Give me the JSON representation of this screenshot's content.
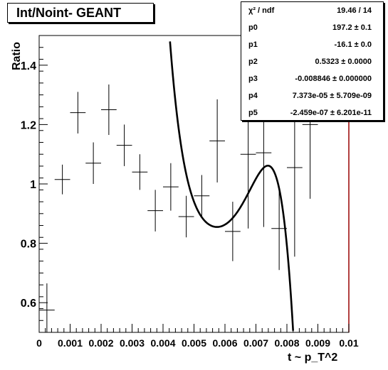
{
  "title": "Int/Noint- GEANT",
  "stats": [
    {
      "name": "χ² / ndf",
      "value": "19.46 / 14"
    },
    {
      "name": "p0",
      "value": "197.2 ± 0.1"
    },
    {
      "name": "p1",
      "value": "-16.1 ± 0.0"
    },
    {
      "name": "p2",
      "value": "0.5323 ± 0.0000"
    },
    {
      "name": "p3",
      "value": "-0.008846 ± 0.000000"
    },
    {
      "name": "p4",
      "value": "7.373e-05 ± 5.709e-09"
    },
    {
      "name": "p5",
      "value": "-2.459e-07 ± 6.201e-11"
    }
  ],
  "chart_data": {
    "type": "scatter",
    "title": "Int/Noint- GEANT",
    "xlabel": "t ~ p_T^2",
    "ylabel": "Ratio",
    "xlim": [
      0,
      0.01
    ],
    "ylim": [
      0.5,
      1.5
    ],
    "x_ticks": [
      "0",
      "0.001",
      "0.002",
      "0.003",
      "0.004",
      "0.005",
      "0.006",
      "0.007",
      "0.008",
      "0.009",
      "0.01"
    ],
    "y_ticks": [
      0.6,
      0.8,
      1,
      1.2,
      1.4
    ],
    "points": [
      {
        "x": 0.00025,
        "y": 0.575,
        "ex": 0.00025,
        "ey": 0.09
      },
      {
        "x": 0.00075,
        "y": 1.015,
        "ex": 0.00025,
        "ey": 0.05
      },
      {
        "x": 0.00125,
        "y": 1.24,
        "ex": 0.00025,
        "ey": 0.07
      },
      {
        "x": 0.00175,
        "y": 1.07,
        "ex": 0.00025,
        "ey": 0.07
      },
      {
        "x": 0.00225,
        "y": 1.25,
        "ex": 0.00025,
        "ey": 0.085
      },
      {
        "x": 0.00275,
        "y": 1.13,
        "ex": 0.00025,
        "ey": 0.07
      },
      {
        "x": 0.00325,
        "y": 1.04,
        "ex": 0.00025,
        "ey": 0.06
      },
      {
        "x": 0.00375,
        "y": 0.91,
        "ex": 0.00025,
        "ey": 0.07
      },
      {
        "x": 0.00425,
        "y": 0.99,
        "ex": 0.00025,
        "ey": 0.08
      },
      {
        "x": 0.00475,
        "y": 0.89,
        "ex": 0.00025,
        "ey": 0.07
      },
      {
        "x": 0.00525,
        "y": 0.96,
        "ex": 0.00025,
        "ey": 0.07
      },
      {
        "x": 0.00575,
        "y": 1.145,
        "ex": 0.00025,
        "ey": 0.14
      },
      {
        "x": 0.00625,
        "y": 0.84,
        "ex": 0.00025,
        "ey": 0.1
      },
      {
        "x": 0.00675,
        "y": 1.1,
        "ex": 0.00025,
        "ey": 0.25
      },
      {
        "x": 0.00725,
        "y": 1.105,
        "ex": 0.00025,
        "ey": 0.25
      },
      {
        "x": 0.00775,
        "y": 0.85,
        "ex": 0.00025,
        "ey": 0.14
      },
      {
        "x": 0.00825,
        "y": 1.055,
        "ex": 0.00025,
        "ey": 0.3
      },
      {
        "x": 0.00875,
        "y": 1.2,
        "ex": 0.00025,
        "ey": 0.25
      }
    ],
    "fit": {
      "function": "pol5",
      "p": [
        197.2,
        -16.1,
        0.5323,
        -0.008846,
        7.373e-05,
        -2.459e-07
      ],
      "x_scale": 10000,
      "color": "#000000"
    },
    "grid": false
  }
}
